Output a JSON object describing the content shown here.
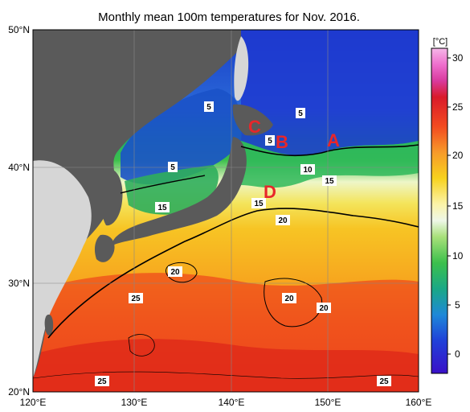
{
  "title": "Monthly mean 100m temperatures for Nov. 2016.",
  "map": {
    "lon_ticks": [
      "120°E",
      "130°E",
      "140°E",
      "150°E",
      "160°E"
    ],
    "lat_ticks": [
      "20°N",
      "30°N",
      "40°N",
      "50°N"
    ]
  },
  "colorbar": {
    "unit": "[°C]",
    "ticks": [
      "30",
      "25",
      "20",
      "15",
      "10",
      "5",
      "0"
    ],
    "range": [
      -3,
      32
    ]
  },
  "contour_labels": [
    {
      "text": "5"
    },
    {
      "text": "5"
    },
    {
      "text": "5"
    },
    {
      "text": "5"
    },
    {
      "text": "10"
    },
    {
      "text": "15"
    },
    {
      "text": "15"
    },
    {
      "text": "15"
    },
    {
      "text": "20"
    },
    {
      "text": "20"
    },
    {
      "text": "20"
    },
    {
      "text": "20"
    },
    {
      "text": "25"
    },
    {
      "text": "25"
    },
    {
      "text": "25"
    }
  ],
  "markers": [
    {
      "text": "A",
      "color": "#e8262a"
    },
    {
      "text": "B",
      "color": "#e8262a"
    },
    {
      "text": "C",
      "color": "#e8262a"
    },
    {
      "text": "D",
      "color": "#e8262a"
    }
  ],
  "colors": {
    "land": "#5a5a5a",
    "land_light": "#d8d8d8",
    "ocean_warm": "#f08020",
    "marker": "#e8262a"
  }
}
